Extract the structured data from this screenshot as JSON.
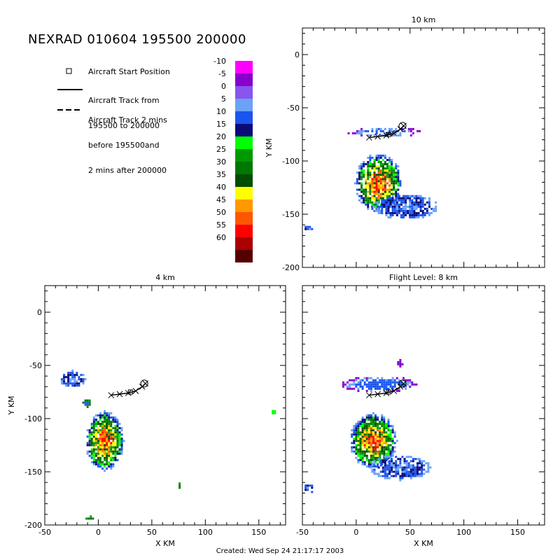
{
  "title": "NEXRAD 010604 195500 200000",
  "footer": "Created: Wed Sep 24 21:17:17 2003",
  "legend": {
    "start_label": "Aircraft Start Position",
    "track_label_lines": [
      "Aircraft Track from",
      "195500 to 200000"
    ],
    "track2_label_lines": [
      "Aircraft Track 2 mins",
      "before 195500and",
      "2 mins after 200000"
    ]
  },
  "colorbar": {
    "labels": [
      "-10",
      "-5",
      "0",
      "5",
      "10",
      "15",
      "20",
      "25",
      "30",
      "35",
      "40",
      "45",
      "50",
      "55",
      "60"
    ],
    "colors": [
      "#ff00ff",
      "#8800cc",
      "#8855ee",
      "#6aa2f6",
      "#1a55ee",
      "#0a0a78",
      "#00ff00",
      "#009900",
      "#007700",
      "#004d00",
      "#ffff00",
      "#ff9900",
      "#ff5500",
      "#ff0000",
      "#aa0000",
      "#550000"
    ]
  },
  "panels": [
    {
      "title": "10 km",
      "xlabel": "",
      "ylabel": "Y KM",
      "xticks": [],
      "yticks": [
        "0",
        "-50",
        "-100",
        "-150",
        "-200"
      ],
      "ticks_right": "Y KM"
    },
    {
      "title": "4 km",
      "xlabel": "X KM",
      "ylabel": "Y KM",
      "xticks": [
        "-50",
        "0",
        "50",
        "100",
        "150"
      ],
      "yticks": [
        "0",
        "-50",
        "-100",
        "-150",
        "-200"
      ]
    },
    {
      "title": "Flight Level: 8 km",
      "xlabel": "X KM",
      "ylabel": "",
      "xticks": [
        "-50",
        "0",
        "50",
        "100",
        "150"
      ],
      "yticks": []
    }
  ]
}
